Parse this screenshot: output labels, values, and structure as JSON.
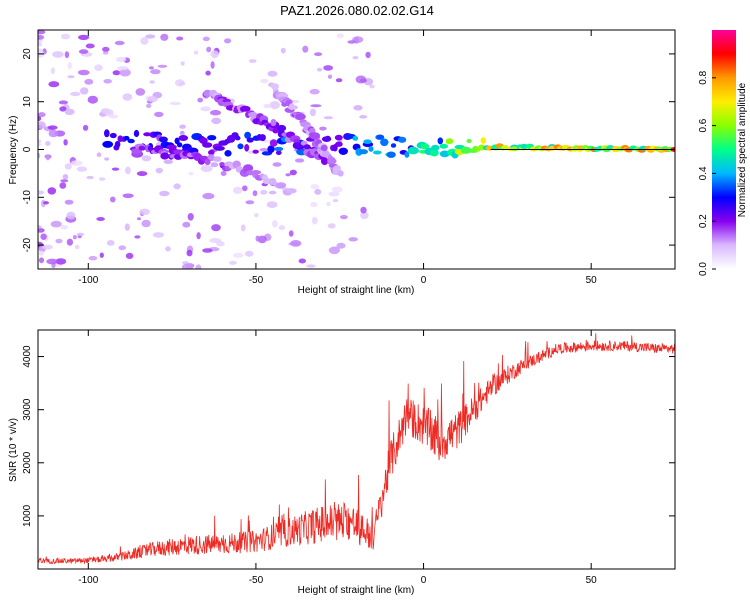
{
  "page": {
    "title": "PAZ1.2026.080.02.02.G14"
  },
  "colors": {
    "snr_line": "#ee2a24",
    "frame": "#000000"
  },
  "chart_data": [
    {
      "type": "heatmap",
      "title": "PAZ1.2026.080.02.02.G14",
      "xlabel": "Height of straight line (km)",
      "ylabel": "Frequency (Hz)",
      "xlim": [
        -115,
        75
      ],
      "ylim": [
        -25,
        25
      ],
      "x_ticks": [
        -100,
        -50,
        0,
        50
      ],
      "y_ticks": [
        -20,
        -10,
        0,
        10,
        20
      ],
      "colorbar": {
        "label": "Normalized spectral amplitude",
        "range": [
          0,
          1
        ],
        "ticks": [
          "0.0",
          "0.2",
          "0.4",
          "0.6",
          "0.8"
        ],
        "colors": [
          "#ffffff",
          "#d8b8ff",
          "#8800ee",
          "#0000ff",
          "#00b8ff",
          "#00ff88",
          "#88ff00",
          "#ffee00",
          "#ff9900",
          "#ff0000",
          "#ff0099"
        ]
      },
      "carrier_line": {
        "x_start": 20,
        "x_end": 75,
        "frequency": 0
      },
      "features": [
        {
          "x": [
            -95,
            -50,
            -20,
            0,
            20,
            75
          ],
          "y": [
            2,
            1,
            1,
            0.5,
            0.5,
            0
          ],
          "amplitude": [
            0.25,
            0.3,
            0.35,
            0.45,
            0.7,
            0.75
          ]
        },
        {
          "x": [
            -65,
            -45,
            -30
          ],
          "y": [
            12,
            5,
            -2
          ],
          "amplitude": [
            0.15,
            0.2,
            0.2
          ]
        },
        {
          "x": [
            -45,
            -35,
            -25
          ],
          "y": [
            13,
            5,
            -5
          ],
          "amplitude": [
            0.12,
            0.15,
            0.12
          ]
        },
        {
          "x": [
            -85,
            -65,
            -50,
            -40
          ],
          "y": [
            0,
            -2,
            -5,
            -9
          ],
          "amplitude": [
            0.2,
            0.18,
            0.15,
            0.12
          ]
        }
      ]
    },
    {
      "type": "line",
      "xlabel": "Height of straight line (km)",
      "ylabel": "SNR (10 * v/v)",
      "xlim": [
        -115,
        75
      ],
      "ylim": [
        0,
        4500
      ],
      "x_ticks": [
        -100,
        -50,
        0,
        50
      ],
      "y_ticks": [
        1000,
        2000,
        3000,
        4000
      ],
      "series": [
        {
          "x": [
            -115,
            -105,
            -95,
            -88,
            -80,
            -70,
            -60,
            -50,
            -40,
            -30,
            -22,
            -15,
            -10,
            -5,
            0,
            5,
            10,
            15,
            20,
            25,
            30,
            35,
            40,
            50,
            60,
            70,
            75
          ],
          "y": [
            150,
            150,
            180,
            260,
            380,
            450,
            470,
            520,
            700,
            850,
            900,
            600,
            2000,
            2900,
            2700,
            2400,
            2600,
            3000,
            3400,
            3650,
            3850,
            4000,
            4150,
            4200,
            4200,
            4150,
            4150
          ],
          "noise": [
            60,
            60,
            70,
            120,
            180,
            230,
            240,
            260,
            350,
            450,
            500,
            350,
            500,
            450,
            500,
            550,
            450,
            350,
            250,
            220,
            160,
            140,
            130,
            120,
            120,
            120,
            120
          ]
        }
      ]
    }
  ]
}
